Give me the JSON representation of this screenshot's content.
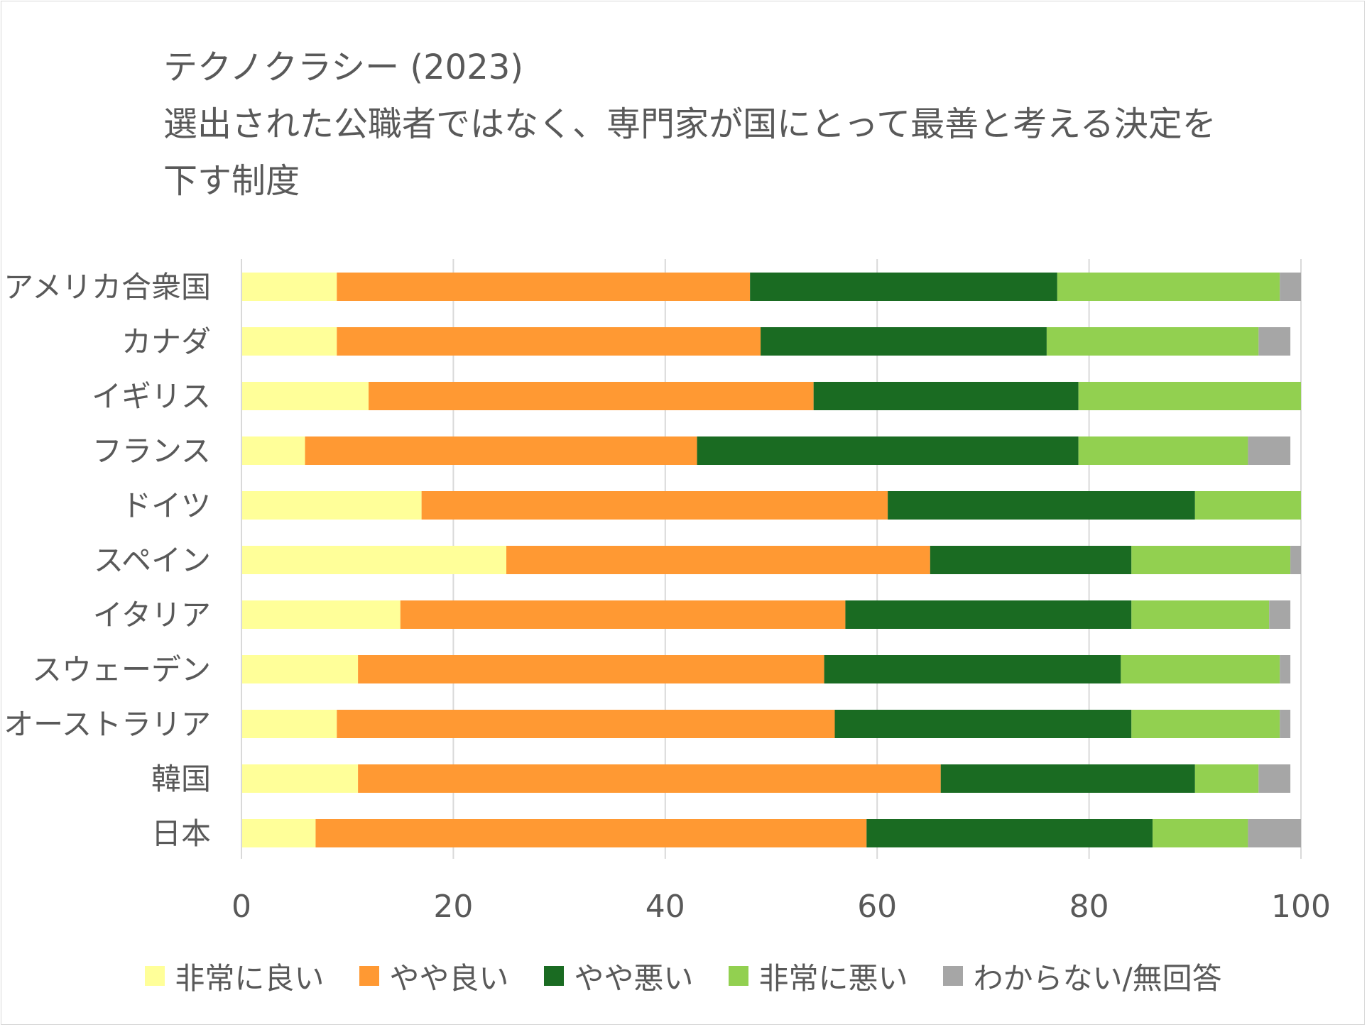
{
  "chart_data": {
    "type": "bar",
    "orientation": "horizontal",
    "stacked": true,
    "title": "テクノクラシー (2023)\n選出された公職者ではなく、専門家が国にとって最善と考える決定を\n下す制度",
    "categories": [
      "アメリカ合衆国",
      "カナダ",
      "イギリス",
      "フランス",
      "ドイツ",
      "スペイン",
      "イタリア",
      "スウェーデン",
      "オーストラリア",
      "韓国",
      "日本"
    ],
    "xlim": [
      0,
      100
    ],
    "xticks": [
      "0",
      "20",
      "40",
      "60",
      "80",
      "100"
    ],
    "grid": true,
    "legend_position": "bottom",
    "series": [
      {
        "name": "非常に良い",
        "color": "#ffff99",
        "values": [
          9,
          9,
          12,
          6,
          17,
          25,
          15,
          11,
          9,
          11,
          7
        ]
      },
      {
        "name": "やや良い",
        "color": "#ff9933",
        "values": [
          39,
          40,
          42,
          37,
          44,
          40,
          42,
          44,
          47,
          55,
          52
        ]
      },
      {
        "name": "やや悪い",
        "color": "#1a6b22",
        "values": [
          29,
          27,
          25,
          36,
          29,
          19,
          27,
          28,
          28,
          24,
          27
        ]
      },
      {
        "name": "非常に悪い",
        "color": "#92d050",
        "values": [
          21,
          20,
          21,
          16,
          10,
          15,
          13,
          15,
          14,
          6,
          9
        ]
      },
      {
        "name": "わからない/無回答",
        "color": "#a6a6a6",
        "values": [
          2,
          3,
          0,
          4,
          0,
          1,
          2,
          1,
          1,
          3,
          5
        ]
      }
    ]
  }
}
